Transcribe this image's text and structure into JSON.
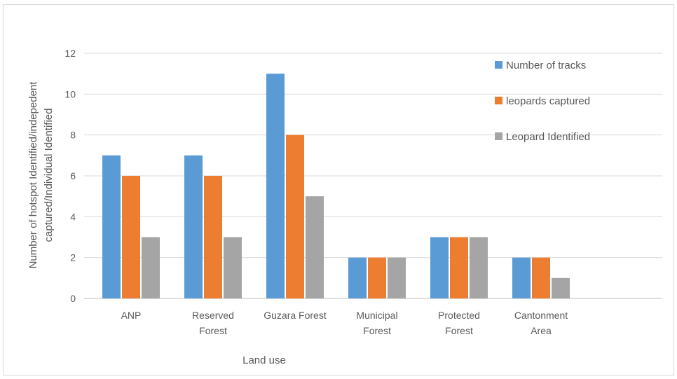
{
  "chart_data": {
    "type": "bar",
    "title": "",
    "xlabel": "Land use",
    "ylabel": "Number of hotspot Identified/indepedent captured/Individual Identified",
    "ylabel_lines": [
      "Number of hotspot Identified/indepedent",
      "captured/Individual Identified"
    ],
    "ylim": [
      0,
      12
    ],
    "yticks": [
      "0",
      "2",
      "4",
      "6",
      "8",
      "10",
      "12"
    ],
    "grid": true,
    "legend_position": "top-right",
    "categories": [
      [
        "ANP"
      ],
      [
        "Reserved",
        "Forest"
      ],
      [
        "Guzara Forest"
      ],
      [
        "Municipal",
        "Forest"
      ],
      [
        "Protected",
        "Forest"
      ],
      [
        "Cantonment",
        "Area"
      ]
    ],
    "series": [
      {
        "name": "Number of tracks",
        "color": "#5b9bd5",
        "values": [
          7,
          7,
          11,
          2,
          3,
          2
        ]
      },
      {
        "name": "leopards captured",
        "color": "#ed7d31",
        "values": [
          6,
          6,
          8,
          2,
          3,
          2
        ]
      },
      {
        "name": "Leopard Identified",
        "color": "#a5a5a5",
        "values": [
          3,
          3,
          5,
          2,
          3,
          1
        ]
      }
    ]
  }
}
